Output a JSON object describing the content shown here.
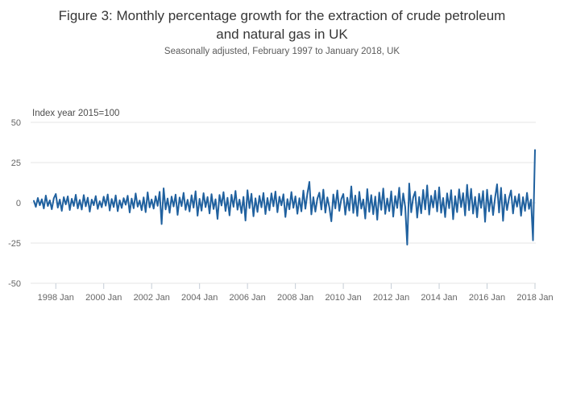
{
  "header": {
    "title_lines": [
      "Figure 3: Monthly percentage growth for the extraction of crude petroleum",
      "and natural gas in UK"
    ],
    "subtitle": "Seasonally adjusted, February 1997 to January 2018, UK"
  },
  "axis_note": "Index year 2015=100",
  "colors": {
    "line": "#20619f",
    "grid": "#e6e6e6",
    "tick_mark": "#c5cdd6",
    "tick_label": "#666666",
    "title": "#363636",
    "subtitle": "#5b5b5b",
    "axis_note": "#4d4d4d"
  },
  "chart_data": {
    "type": "line",
    "title": "Monthly percentage growth for the extraction of crude petroleum and natural gas in UK",
    "subtitle": "Seasonally adjusted, February 1997 to January 2018, UK",
    "ylabel_note": "Index year 2015=100",
    "x_start": "1997-02",
    "x_end": "2018-01",
    "ylim": [
      -50,
      50
    ],
    "y_ticks": [
      50,
      25,
      0,
      -25,
      -50
    ],
    "x_ticks": [
      {
        "label": "1998 Jan",
        "month_index": 11
      },
      {
        "label": "2000 Jan",
        "month_index": 35
      },
      {
        "label": "2002 Jan",
        "month_index": 59
      },
      {
        "label": "2004 Jan",
        "month_index": 83
      },
      {
        "label": "2006 Jan",
        "month_index": 107
      },
      {
        "label": "2008 Jan",
        "month_index": 131
      },
      {
        "label": "2010 Jan",
        "month_index": 155
      },
      {
        "label": "2012 Jan",
        "month_index": 179
      },
      {
        "label": "2014 Jan",
        "month_index": 203
      },
      {
        "label": "2016 Jan",
        "month_index": 227
      },
      {
        "label": "2018 Jan",
        "month_index": 251
      }
    ],
    "grid": true,
    "legend": "none",
    "series": [
      {
        "name": "Monthly percentage growth",
        "values": [
          1.2,
          -2.5,
          3.0,
          -1.5,
          2.2,
          -3.5,
          4.5,
          -2.0,
          1.5,
          -4.0,
          2.8,
          5.5,
          -3.0,
          2.0,
          -5.0,
          3.5,
          -1.0,
          4.0,
          -4.5,
          2.5,
          -2.0,
          5.0,
          -3.5,
          1.8,
          -4.2,
          4.8,
          -2.2,
          3.2,
          -5.5,
          2.0,
          -1.5,
          4.2,
          -3.8,
          1.0,
          -2.8,
          3.8,
          -1.8,
          5.2,
          -4.8,
          2.4,
          -2.6,
          4.6,
          -5.2,
          1.6,
          -3.2,
          2.9,
          -1.2,
          4.4,
          -6.0,
          2.6,
          -3.4,
          5.8,
          -2.4,
          1.4,
          -4.6,
          3.4,
          -5.8,
          6.5,
          -2.9,
          2.1,
          -3.6,
          4.1,
          -1.9,
          6.8,
          -13.2,
          9.0,
          -4.1,
          2.7,
          -6.2,
          3.9,
          -2.3,
          5.1,
          -7.5,
          3.3,
          -2.1,
          6.2,
          -4.4,
          1.9,
          -5.4,
          4.7,
          -3.0,
          7.2,
          -8.0,
          2.5,
          -4.9,
          6.0,
          -2.7,
          3.6,
          -6.6,
          5.4,
          -3.9,
          2.2,
          -10.0,
          4.9,
          -1.7,
          6.6,
          -5.1,
          3.1,
          -7.8,
          5.0,
          -2.5,
          7.4,
          -4.3,
          2.0,
          -6.4,
          3.7,
          -11.0,
          7.8,
          -3.3,
          5.6,
          -8.4,
          2.8,
          -5.7,
          4.3,
          -2.8,
          6.1,
          -7.0,
          3.0,
          -4.7,
          5.9,
          -2.2,
          7.0,
          -5.9,
          3.8,
          -1.6,
          5.3,
          -8.8,
          2.3,
          -4.0,
          6.7,
          -3.1,
          4.0,
          -6.8,
          2.9,
          -5.3,
          7.6,
          -3.7,
          5.7,
          13.0,
          -7.2,
          3.5,
          -5.5,
          2.6,
          6.3,
          -4.2,
          8.2,
          -6.1,
          3.4,
          -2.8,
          -11.5,
          5.2,
          -3.5,
          7.7,
          -5.0,
          2.4,
          5.5,
          -7.4,
          3.2,
          -4.8,
          10.2,
          -6.3,
          4.5,
          -8.2,
          6.8,
          -3.6,
          2.1,
          -9.8,
          8.5,
          -5.6,
          4.8,
          -7.1,
          3.9,
          -10.5,
          6.4,
          -4.4,
          8.9,
          -6.9,
          2.7,
          -5.2,
          7.1,
          -8.6,
          4.2,
          -3.2,
          9.4,
          -7.7,
          5.8,
          -2.6,
          -26.0,
          12.0,
          -5.9,
          3.3,
          6.9,
          -9.2,
          3.6,
          -6.5,
          8.0,
          -4.1,
          10.8,
          -7.3,
          4.4,
          -2.9,
          7.5,
          -5.4,
          9.6,
          -6.2,
          3.0,
          -8.9,
          5.9,
          -3.4,
          7.9,
          -10.2,
          4.1,
          -5.8,
          8.4,
          -2.7,
          6.0,
          -7.9,
          11.2,
          -4.6,
          8.7,
          -6.7,
          3.7,
          -9.0,
          5.6,
          -3.1,
          7.3,
          -11.8,
          8.1,
          -5.3,
          4.6,
          -7.6,
          3.1,
          11.5,
          -6.0,
          9.3,
          -11.2,
          5.1,
          -4.5,
          2.9,
          7.7,
          -6.6,
          4.0,
          -2.4,
          5.4,
          -8.1,
          3.5,
          -5.0,
          6.2,
          -3.8,
          2.0,
          -23.3,
          32.8
        ]
      }
    ]
  }
}
